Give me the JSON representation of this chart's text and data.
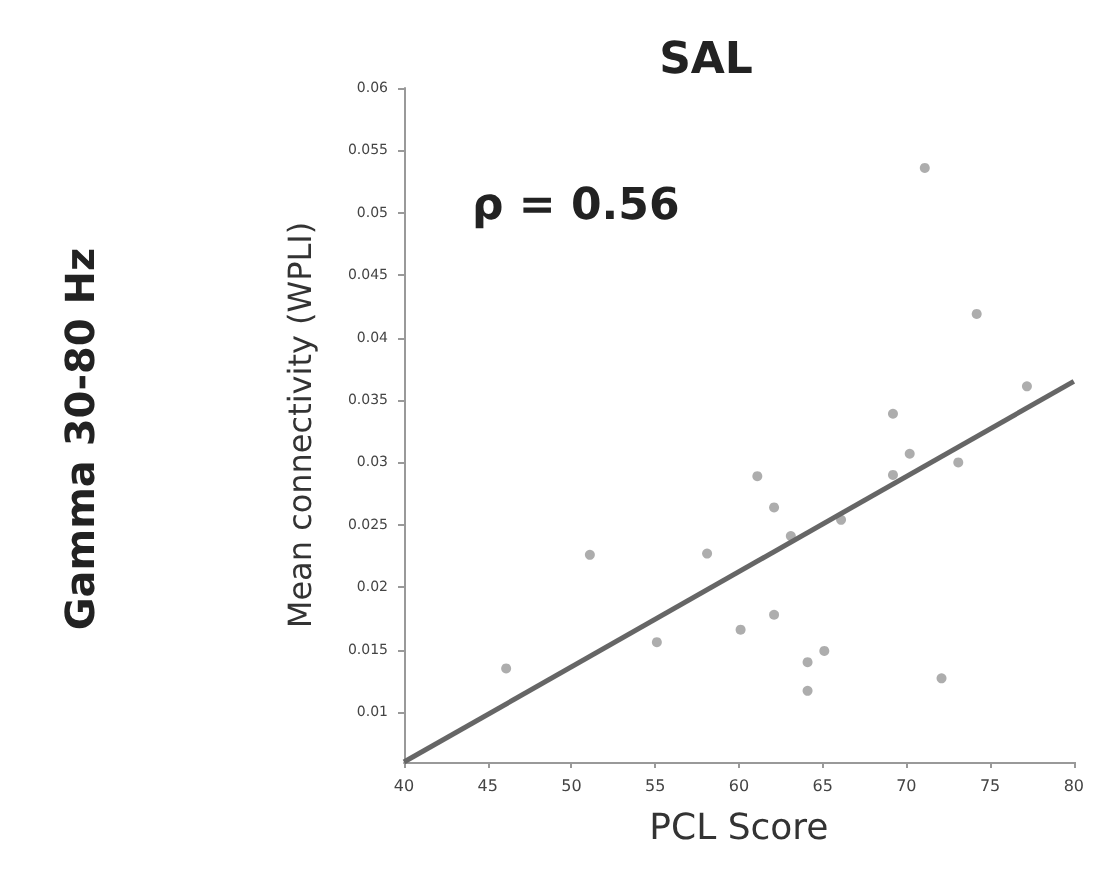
{
  "chart_data": {
    "type": "scatter",
    "title": "SAL",
    "xlabel": "PCL Score",
    "ylabel": "Mean connectivity (WPLI)",
    "annotations": [
      "ρ = 0.56",
      "Gamma 30-80 Hz"
    ],
    "xlim": [
      40,
      80
    ],
    "xticks": [
      40,
      45,
      50,
      55,
      60,
      65,
      70,
      75,
      80
    ],
    "ylim": [
      0.006,
      0.06
    ],
    "yticks": [
      0.01,
      0.015,
      0.02,
      0.025,
      0.03,
      0.035,
      0.04,
      0.045,
      0.05,
      0.055,
      0.06
    ],
    "grid": false,
    "marker": "circle",
    "series": [
      {
        "color": "#999999",
        "x": [
          46.1,
          51.1,
          55.1,
          58.1,
          60.1,
          61.1,
          62.1,
          62.1,
          63.1,
          64.1,
          64.1,
          65.1,
          66.1,
          69.2,
          69.2,
          70.2,
          72.1,
          73.1,
          71.1,
          74.2,
          77.2
        ],
        "values": [
          0.0135,
          0.0226,
          0.0156,
          0.0227,
          0.0166,
          0.0289,
          0.0264,
          0.0178,
          0.0241,
          0.014,
          0.0117,
          0.0149,
          0.0254,
          0.0339,
          0.029,
          0.0307,
          0.0127,
          0.03,
          0.0536,
          0.0419,
          0.0361
        ]
      },
      {
        "type": "line",
        "color": "#666666",
        "marker": "none",
        "x": [
          40,
          80
        ],
        "values": [
          0.006,
          0.0365
        ]
      }
    ]
  }
}
